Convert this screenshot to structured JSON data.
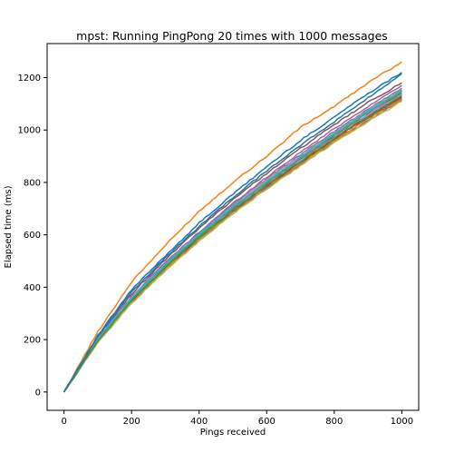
{
  "chart_data": {
    "type": "line",
    "title": "mpst: Running PingPong 20 times with 1000 messages",
    "xlabel": "Pings received",
    "ylabel": "Elapsed time (ms)",
    "xlim": [
      -50,
      1050
    ],
    "ylim": [
      -70,
      1330
    ],
    "xticks": [
      0,
      200,
      400,
      600,
      800,
      1000
    ],
    "yticks": [
      0,
      200,
      400,
      600,
      800,
      1000,
      1200
    ],
    "grid": false,
    "legend": "none",
    "x": [
      0,
      100,
      200,
      300,
      400,
      500,
      600,
      700,
      800,
      900,
      1000
    ],
    "series": [
      {
        "color": "#ff7f0e",
        "values": [
          0,
          230,
          420,
          560,
          690,
          800,
          900,
          1010,
          1090,
          1180,
          1260
        ]
      },
      {
        "color": "#1f77b4",
        "values": [
          0,
          215,
          390,
          520,
          645,
          755,
          860,
          960,
          1050,
          1140,
          1220
        ]
      },
      {
        "color": "#8c564b",
        "values": [
          0,
          210,
          375,
          505,
          625,
          735,
          835,
          930,
          1020,
          1105,
          1180
        ]
      },
      {
        "color": "#9467bd",
        "values": [
          0,
          205,
          365,
          495,
          610,
          720,
          820,
          915,
          1005,
          1090,
          1170
        ]
      },
      {
        "color": "#7f7f7f",
        "values": [
          0,
          200,
          360,
          490,
          605,
          715,
          815,
          905,
          995,
          1080,
          1160
        ]
      },
      {
        "color": "#e377c2",
        "values": [
          0,
          200,
          360,
          488,
          600,
          710,
          810,
          900,
          990,
          1075,
          1155
        ]
      },
      {
        "color": "#bcbd22",
        "values": [
          0,
          198,
          355,
          485,
          598,
          705,
          805,
          895,
          985,
          1070,
          1150
        ]
      },
      {
        "color": "#17becf",
        "values": [
          0,
          196,
          352,
          480,
          595,
          700,
          800,
          890,
          980,
          1065,
          1145
        ]
      },
      {
        "color": "#2ca02c",
        "values": [
          0,
          195,
          350,
          478,
          592,
          698,
          795,
          885,
          975,
          1060,
          1140
        ]
      },
      {
        "color": "#1f77b4",
        "values": [
          0,
          194,
          348,
          475,
          588,
          695,
          790,
          880,
          970,
          1055,
          1135
        ]
      },
      {
        "color": "#d62728",
        "values": [
          0,
          192,
          345,
          472,
          585,
          690,
          785,
          875,
          965,
          1050,
          1125
        ]
      },
      {
        "color": "#8c564b",
        "values": [
          0,
          192,
          345,
          470,
          582,
          688,
          782,
          872,
          960,
          1045,
          1122
        ]
      },
      {
        "color": "#ff7f0e",
        "values": [
          0,
          190,
          342,
          468,
          580,
          685,
          780,
          870,
          958,
          1040,
          1118
        ]
      },
      {
        "color": "#9467bd",
        "values": [
          0,
          190,
          340,
          466,
          578,
          682,
          778,
          866,
          955,
          1035,
          1115
        ]
      },
      {
        "color": "#bcbd22",
        "values": [
          0,
          188,
          338,
          464,
          576,
          680,
          775,
          864,
          952,
          1032,
          1110
        ]
      },
      {
        "color": "#e377c2",
        "values": [
          0,
          192,
          350,
          478,
          590,
          695,
          792,
          884,
          972,
          1058,
          1138
        ]
      },
      {
        "color": "#7f7f7f",
        "values": [
          0,
          196,
          355,
          482,
          596,
          702,
          800,
          892,
          980,
          1066,
          1148
        ]
      },
      {
        "color": "#17becf",
        "values": [
          0,
          198,
          358,
          486,
          600,
          706,
          804,
          896,
          986,
          1072,
          1152
        ]
      },
      {
        "color": "#2ca02c",
        "values": [
          0,
          194,
          350,
          476,
          590,
          694,
          790,
          880,
          968,
          1052,
          1130
        ]
      },
      {
        "color": "#1f77b4",
        "values": [
          0,
          212,
          382,
          512,
          632,
          742,
          845,
          942,
          1032,
          1122,
          1215
        ]
      }
    ]
  }
}
